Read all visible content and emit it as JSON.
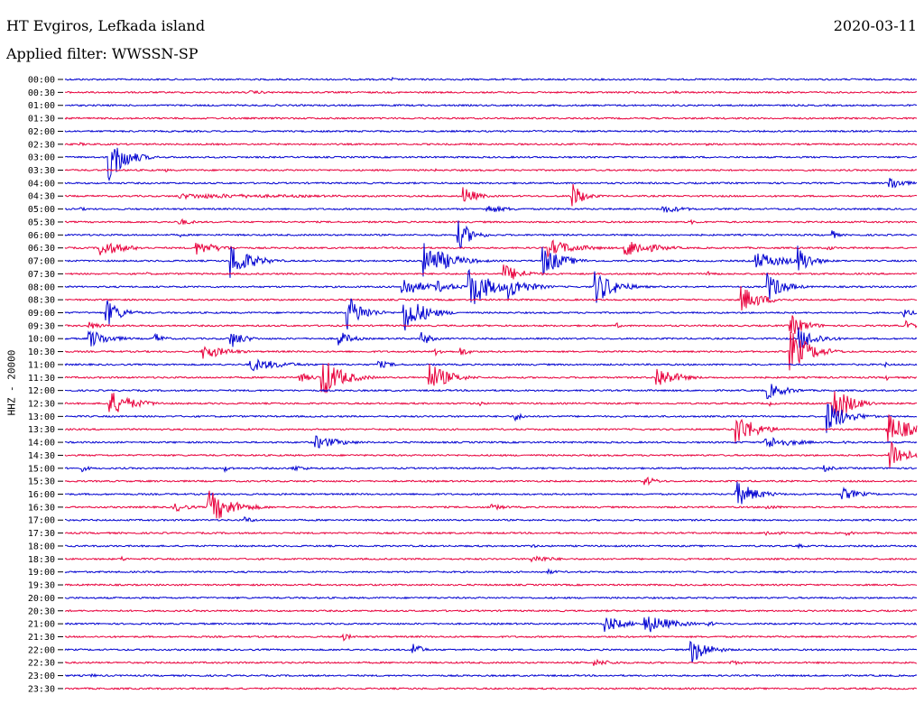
{
  "header": {
    "station": "HT Evgiros, Lefkada island",
    "date": "2020-03-11",
    "filter": "Applied filter: WWSSN-SP"
  },
  "chart_data": {
    "type": "line",
    "title": "HT Evgiros, Lefkada island",
    "ylabel": "HHZ - 20000",
    "row_labels": [
      "00:00",
      "00:30",
      "01:00",
      "01:30",
      "02:00",
      "02:30",
      "03:00",
      "03:30",
      "04:00",
      "04:30",
      "05:00",
      "05:30",
      "06:00",
      "06:30",
      "07:00",
      "07:30",
      "08:00",
      "08:30",
      "09:00",
      "09:30",
      "10:00",
      "10:30",
      "11:00",
      "11:30",
      "12:00",
      "12:30",
      "13:00",
      "13:30",
      "14:00",
      "14:30",
      "15:00",
      "15:30",
      "16:00",
      "16:30",
      "17:00",
      "17:30",
      "18:00",
      "18:30",
      "19:00",
      "19:30",
      "20:00",
      "20:30",
      "21:00",
      "21:30",
      "22:00",
      "22:30",
      "23:00",
      "23:30"
    ],
    "series_colors": [
      "#0000d0",
      "#e8003c"
    ],
    "x_range_minutes": [
      0,
      30
    ],
    "bursts": [
      {
        "row": 0,
        "minute": 11.5,
        "amp": 3,
        "dur": 0.3
      },
      {
        "row": 1,
        "minute": 6.5,
        "amp": 2,
        "dur": 2
      },
      {
        "row": 1,
        "minute": 10.5,
        "amp": 2,
        "dur": 0.2
      },
      {
        "row": 1,
        "minute": 21.5,
        "amp": 2,
        "dur": 0.3
      },
      {
        "row": 4,
        "minute": 16.5,
        "amp": 2,
        "dur": 0.3
      },
      {
        "row": 5,
        "minute": 0.5,
        "amp": 2,
        "dur": 0.8
      },
      {
        "row": 5,
        "minute": 22.5,
        "amp": 2,
        "dur": 0.5
      },
      {
        "row": 6,
        "minute": 1.5,
        "amp": 32,
        "dur": 1.0
      },
      {
        "row": 7,
        "minute": 3.5,
        "amp": 3,
        "dur": 0.3
      },
      {
        "row": 7,
        "minute": 13.0,
        "amp": 2,
        "dur": 0.3
      },
      {
        "row": 8,
        "minute": 29.0,
        "amp": 10,
        "dur": 0.8
      },
      {
        "row": 9,
        "minute": 4,
        "amp": 3,
        "dur": 10
      },
      {
        "row": 9,
        "minute": 14.0,
        "amp": 12,
        "dur": 0.8
      },
      {
        "row": 9,
        "minute": 17.8,
        "amp": 18,
        "dur": 0.7
      },
      {
        "row": 10,
        "minute": 0.5,
        "amp": 2,
        "dur": 0.8
      },
      {
        "row": 10,
        "minute": 14.8,
        "amp": 5,
        "dur": 1.5
      },
      {
        "row": 10,
        "minute": 21.0,
        "amp": 5,
        "dur": 1.5
      },
      {
        "row": 11,
        "minute": 4.0,
        "amp": 4,
        "dur": 1.0
      },
      {
        "row": 11,
        "minute": 22.0,
        "amp": 3,
        "dur": 0.6
      },
      {
        "row": 11,
        "minute": 27.5,
        "amp": 3,
        "dur": 0.3
      },
      {
        "row": 12,
        "minute": 4.0,
        "amp": 3,
        "dur": 0.4
      },
      {
        "row": 12,
        "minute": 13.8,
        "amp": 20,
        "dur": 0.8
      },
      {
        "row": 12,
        "minute": 27.0,
        "amp": 6,
        "dur": 0.4
      },
      {
        "row": 13,
        "minute": 1.2,
        "amp": 10,
        "dur": 1.5
      },
      {
        "row": 13,
        "minute": 4.6,
        "amp": 8,
        "dur": 1.5
      },
      {
        "row": 13,
        "minute": 17.0,
        "amp": 10,
        "dur": 1.8
      },
      {
        "row": 13,
        "minute": 19.7,
        "amp": 12,
        "dur": 1.6
      },
      {
        "row": 13,
        "minute": 26.8,
        "amp": 4,
        "dur": 0.5
      },
      {
        "row": 14,
        "minute": 5.8,
        "amp": 22,
        "dur": 1.2
      },
      {
        "row": 14,
        "minute": 12.6,
        "amp": 22,
        "dur": 1.5
      },
      {
        "row": 14,
        "minute": 16.8,
        "amp": 18,
        "dur": 1.2
      },
      {
        "row": 14,
        "minute": 24.3,
        "amp": 10,
        "dur": 2.0
      },
      {
        "row": 14,
        "minute": 25.8,
        "amp": 18,
        "dur": 0.8
      },
      {
        "row": 15,
        "minute": 2.8,
        "amp": 3,
        "dur": 0.4
      },
      {
        "row": 15,
        "minute": 15.4,
        "amp": 12,
        "dur": 1.2
      },
      {
        "row": 15,
        "minute": 22.6,
        "amp": 4,
        "dur": 0.6
      },
      {
        "row": 16,
        "minute": 11.8,
        "amp": 14,
        "dur": 1.2
      },
      {
        "row": 16,
        "minute": 13.0,
        "amp": 8,
        "dur": 1.2
      },
      {
        "row": 16,
        "minute": 14.2,
        "amp": 28,
        "dur": 1.2
      },
      {
        "row": 16,
        "minute": 15.6,
        "amp": 14,
        "dur": 1.2
      },
      {
        "row": 16,
        "minute": 18.6,
        "amp": 22,
        "dur": 1.2
      },
      {
        "row": 16,
        "minute": 24.7,
        "amp": 18,
        "dur": 1.0
      },
      {
        "row": 17,
        "minute": 23.8,
        "amp": 16,
        "dur": 1.2
      },
      {
        "row": 18,
        "minute": 1.4,
        "amp": 18,
        "dur": 0.9
      },
      {
        "row": 18,
        "minute": 9.9,
        "amp": 22,
        "dur": 1.0
      },
      {
        "row": 18,
        "minute": 11.9,
        "amp": 24,
        "dur": 1.2
      },
      {
        "row": 18,
        "minute": 29.5,
        "amp": 6,
        "dur": 0.6
      },
      {
        "row": 19,
        "minute": 0.8,
        "amp": 5,
        "dur": 1.0
      },
      {
        "row": 19,
        "minute": 19.4,
        "amp": 4,
        "dur": 0.3
      },
      {
        "row": 19,
        "minute": 25.5,
        "amp": 14,
        "dur": 1.0
      },
      {
        "row": 19,
        "minute": 29.6,
        "amp": 6,
        "dur": 0.6
      },
      {
        "row": 20,
        "minute": 0.8,
        "amp": 12,
        "dur": 1.2
      },
      {
        "row": 20,
        "minute": 3.1,
        "amp": 8,
        "dur": 0.6
      },
      {
        "row": 20,
        "minute": 5.8,
        "amp": 12,
        "dur": 0.8
      },
      {
        "row": 20,
        "minute": 9.6,
        "amp": 10,
        "dur": 0.8
      },
      {
        "row": 20,
        "minute": 12.5,
        "amp": 10,
        "dur": 0.6
      },
      {
        "row": 20,
        "minute": 25.8,
        "amp": 14,
        "dur": 1.2
      },
      {
        "row": 21,
        "minute": 4.8,
        "amp": 10,
        "dur": 1.4
      },
      {
        "row": 21,
        "minute": 13.0,
        "amp": 5,
        "dur": 0.6
      },
      {
        "row": 21,
        "minute": 13.9,
        "amp": 6,
        "dur": 0.6
      },
      {
        "row": 21,
        "minute": 25.5,
        "amp": 26,
        "dur": 1.2
      },
      {
        "row": 22,
        "minute": 6.5,
        "amp": 8,
        "dur": 2.0
      },
      {
        "row": 22,
        "minute": 11.0,
        "amp": 5,
        "dur": 1.0
      },
      {
        "row": 22,
        "minute": 28.8,
        "amp": 4,
        "dur": 0.4
      },
      {
        "row": 23,
        "minute": 8.2,
        "amp": 6,
        "dur": 1.0
      },
      {
        "row": 23,
        "minute": 9.0,
        "amp": 26,
        "dur": 1.2
      },
      {
        "row": 23,
        "minute": 12.8,
        "amp": 18,
        "dur": 1.2
      },
      {
        "row": 23,
        "minute": 20.8,
        "amp": 14,
        "dur": 1.2
      },
      {
        "row": 23,
        "minute": 28.9,
        "amp": 4,
        "dur": 0.3
      },
      {
        "row": 24,
        "minute": 24.7,
        "amp": 10,
        "dur": 1.2
      },
      {
        "row": 25,
        "minute": 1.5,
        "amp": 16,
        "dur": 1.4
      },
      {
        "row": 25,
        "minute": 14.6,
        "amp": 4,
        "dur": 0.3
      },
      {
        "row": 25,
        "minute": 24.8,
        "amp": 3,
        "dur": 0.4
      },
      {
        "row": 25,
        "minute": 27.0,
        "amp": 28,
        "dur": 1.0
      },
      {
        "row": 26,
        "minute": 15.8,
        "amp": 6,
        "dur": 0.6
      },
      {
        "row": 26,
        "minute": 26.8,
        "amp": 20,
        "dur": 1.2
      },
      {
        "row": 27,
        "minute": 23.6,
        "amp": 20,
        "dur": 1.2
      },
      {
        "row": 27,
        "minute": 28.9,
        "amp": 20,
        "dur": 1.4
      },
      {
        "row": 28,
        "minute": 8.8,
        "amp": 8,
        "dur": 1.6
      },
      {
        "row": 28,
        "minute": 24.6,
        "amp": 8,
        "dur": 1.8
      },
      {
        "row": 28,
        "minute": 27.4,
        "amp": 4,
        "dur": 0.6
      },
      {
        "row": 29,
        "minute": 29.0,
        "amp": 26,
        "dur": 0.8
      },
      {
        "row": 30,
        "minute": 0.6,
        "amp": 4,
        "dur": 0.5
      },
      {
        "row": 30,
        "minute": 5.6,
        "amp": 4,
        "dur": 0.6
      },
      {
        "row": 30,
        "minute": 8.0,
        "amp": 4,
        "dur": 1.0
      },
      {
        "row": 30,
        "minute": 26.7,
        "amp": 4,
        "dur": 0.8
      },
      {
        "row": 31,
        "minute": 20.4,
        "amp": 6,
        "dur": 0.8
      },
      {
        "row": 32,
        "minute": 23.6,
        "amp": 16,
        "dur": 1.2
      },
      {
        "row": 32,
        "minute": 27.3,
        "amp": 8,
        "dur": 1.2
      },
      {
        "row": 33,
        "minute": 3.8,
        "amp": 6,
        "dur": 1.0
      },
      {
        "row": 33,
        "minute": 5.0,
        "amp": 22,
        "dur": 1.4
      },
      {
        "row": 33,
        "minute": 14.9,
        "amp": 4,
        "dur": 1.2
      },
      {
        "row": 33,
        "minute": 24.6,
        "amp": 3,
        "dur": 1.2
      },
      {
        "row": 34,
        "minute": 6.3,
        "amp": 4,
        "dur": 0.8
      },
      {
        "row": 35,
        "minute": 24.6,
        "amp": 4,
        "dur": 1.0
      },
      {
        "row": 35,
        "minute": 27.5,
        "amp": 3,
        "dur": 0.6
      },
      {
        "row": 36,
        "minute": 16.4,
        "amp": 3,
        "dur": 0.4
      },
      {
        "row": 36,
        "minute": 25.8,
        "amp": 3,
        "dur": 0.4
      },
      {
        "row": 37,
        "minute": 2.0,
        "amp": 3,
        "dur": 0.4
      },
      {
        "row": 37,
        "minute": 16.4,
        "amp": 5,
        "dur": 1.4
      },
      {
        "row": 38,
        "minute": 17.0,
        "amp": 3,
        "dur": 0.8
      },
      {
        "row": 39,
        "minute": 1.0,
        "amp": 2,
        "dur": 0.4
      },
      {
        "row": 39,
        "minute": 8.5,
        "amp": 2,
        "dur": 0.6
      },
      {
        "row": 42,
        "minute": 19.0,
        "amp": 10,
        "dur": 1.2
      },
      {
        "row": 42,
        "minute": 20.4,
        "amp": 12,
        "dur": 1.6
      },
      {
        "row": 42,
        "minute": 22.6,
        "amp": 4,
        "dur": 0.6
      },
      {
        "row": 43,
        "minute": 9.7,
        "amp": 6,
        "dur": 0.6
      },
      {
        "row": 44,
        "minute": 12.2,
        "amp": 12,
        "dur": 0.5
      },
      {
        "row": 44,
        "minute": 22.0,
        "amp": 18,
        "dur": 1.0
      },
      {
        "row": 45,
        "minute": 18.6,
        "amp": 4,
        "dur": 1.6
      },
      {
        "row": 45,
        "minute": 23.4,
        "amp": 3,
        "dur": 1.0
      },
      {
        "row": 46,
        "minute": 0.9,
        "amp": 3,
        "dur": 0.4
      }
    ]
  }
}
